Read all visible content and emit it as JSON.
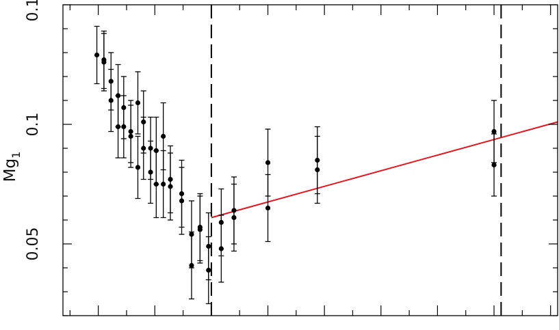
{
  "chart_data": {
    "type": "scatter",
    "title": "",
    "xlabel": "",
    "ylabel": "Mg",
    "ylabel_subscript": "1",
    "xlim": [
      -0.925,
      0.825
    ],
    "ylim": [
      0.02,
      0.15
    ],
    "yticks": [
      0.05,
      0.1,
      0.15
    ],
    "ytick_labels": [
      "0.05",
      "0.1",
      "0.15"
    ],
    "xticks_major": [
      -0.8,
      -0.6,
      -0.4,
      -0.2,
      0.0,
      0.2,
      0.4,
      0.6,
      0.8
    ],
    "x_tick_labels_visible": false,
    "grid": false,
    "vertical_dashed_lines": [
      -0.4,
      0.625
    ],
    "fit_line": {
      "color": "#e8141c",
      "x": [
        -0.4,
        0.825
      ],
      "y": [
        0.061,
        0.101
      ]
    },
    "series": [
      {
        "marker_color": "#000000",
        "points": [
          {
            "x": -0.805,
            "y": 0.129,
            "err": 0.012
          },
          {
            "x": -0.78,
            "y": 0.127,
            "err": 0.012
          },
          {
            "x": -0.78,
            "y": 0.126,
            "err": 0.012
          },
          {
            "x": -0.755,
            "y": 0.118,
            "err": 0.012
          },
          {
            "x": -0.755,
            "y": 0.11,
            "err": 0.013
          },
          {
            "x": -0.73,
            "y": 0.112,
            "err": 0.013
          },
          {
            "x": -0.73,
            "y": 0.099,
            "err": 0.013
          },
          {
            "x": -0.71,
            "y": 0.107,
            "err": 0.013
          },
          {
            "x": -0.71,
            "y": 0.099,
            "err": 0.013
          },
          {
            "x": -0.685,
            "y": 0.097,
            "err": 0.013
          },
          {
            "x": -0.685,
            "y": 0.095,
            "err": 0.013
          },
          {
            "x": -0.66,
            "y": 0.109,
            "err": 0.013
          },
          {
            "x": -0.66,
            "y": 0.082,
            "err": 0.013
          },
          {
            "x": -0.64,
            "y": 0.101,
            "err": 0.013
          },
          {
            "x": -0.64,
            "y": 0.09,
            "err": 0.013
          },
          {
            "x": -0.615,
            "y": 0.09,
            "err": 0.013
          },
          {
            "x": -0.615,
            "y": 0.08,
            "err": 0.013
          },
          {
            "x": -0.595,
            "y": 0.089,
            "err": 0.014
          },
          {
            "x": -0.595,
            "y": 0.075,
            "err": 0.014
          },
          {
            "x": -0.57,
            "y": 0.095,
            "err": 0.014
          },
          {
            "x": -0.57,
            "y": 0.075,
            "err": 0.014
          },
          {
            "x": -0.545,
            "y": 0.077,
            "err": 0.014
          },
          {
            "x": -0.545,
            "y": 0.074,
            "err": 0.014
          },
          {
            "x": -0.505,
            "y": 0.071,
            "err": 0.014
          },
          {
            "x": -0.505,
            "y": 0.068,
            "err": 0.014
          },
          {
            "x": -0.47,
            "y": 0.054,
            "err": 0.014
          },
          {
            "x": -0.47,
            "y": 0.041,
            "err": 0.014
          },
          {
            "x": -0.44,
            "y": 0.057,
            "err": 0.014
          },
          {
            "x": -0.44,
            "y": 0.056,
            "err": 0.014
          },
          {
            "x": -0.41,
            "y": 0.049,
            "err": 0.014
          },
          {
            "x": -0.41,
            "y": 0.039,
            "err": 0.014
          },
          {
            "x": -0.365,
            "y": 0.059,
            "err": 0.014
          },
          {
            "x": -0.365,
            "y": 0.048,
            "err": 0.014
          },
          {
            "x": -0.32,
            "y": 0.064,
            "err": 0.014
          },
          {
            "x": -0.32,
            "y": 0.061,
            "err": 0.014
          },
          {
            "x": -0.2,
            "y": 0.084,
            "err": 0.014
          },
          {
            "x": -0.2,
            "y": 0.065,
            "err": 0.014
          },
          {
            "x": -0.025,
            "y": 0.085,
            "err": 0.014
          },
          {
            "x": -0.025,
            "y": 0.081,
            "err": 0.014
          },
          {
            "x": 0.6,
            "y": 0.097,
            "err": 0.013
          },
          {
            "x": 0.6,
            "y": 0.083,
            "err": 0.013
          }
        ]
      }
    ]
  }
}
